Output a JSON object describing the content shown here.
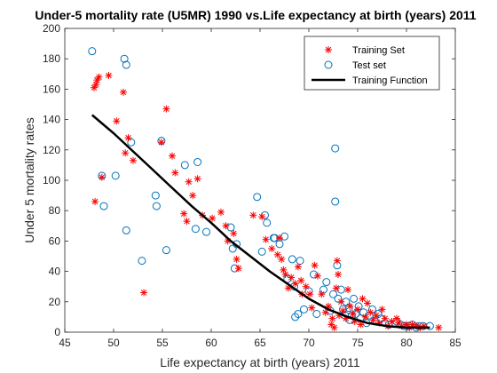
{
  "chart_data": {
    "type": "scatter",
    "title": "Under-5 mortality rate (U5MR) 1990 vs.Life expectancy at birth (years) 2011",
    "xlabel": "Life expectancy at birth (years) 2011",
    "ylabel": "Under 5 mortality rates",
    "xlim": [
      45,
      85
    ],
    "ylim": [
      0,
      200
    ],
    "xticks": [
      45,
      50,
      55,
      60,
      65,
      70,
      75,
      80,
      85
    ],
    "yticks": [
      0,
      20,
      40,
      60,
      80,
      100,
      120,
      140,
      160,
      180,
      200
    ],
    "legend_position": "top-right",
    "colors": {
      "training": "#ff0000",
      "test": "#0072bd",
      "function": "#000000"
    },
    "series": [
      {
        "name": "Training Set",
        "marker": "asterisk",
        "points": [
          [
            48.0,
            161
          ],
          [
            48.2,
            163
          ],
          [
            48.3,
            166
          ],
          [
            48.5,
            168
          ],
          [
            49.5,
            169
          ],
          [
            48.1,
            86
          ],
          [
            48.8,
            102
          ],
          [
            50.3,
            139
          ],
          [
            51.0,
            158
          ],
          [
            51.2,
            118
          ],
          [
            51.5,
            128
          ],
          [
            52.0,
            113
          ],
          [
            53.1,
            26
          ],
          [
            54.9,
            125
          ],
          [
            55.4,
            147
          ],
          [
            56.0,
            116
          ],
          [
            56.3,
            105
          ],
          [
            57.2,
            78
          ],
          [
            57.5,
            73
          ],
          [
            57.7,
            99
          ],
          [
            58.1,
            90
          ],
          [
            58.6,
            101
          ],
          [
            59.1,
            77
          ],
          [
            60.1,
            75
          ],
          [
            61.0,
            79
          ],
          [
            61.5,
            70
          ],
          [
            61.7,
            60
          ],
          [
            62.3,
            65
          ],
          [
            62.6,
            48
          ],
          [
            62.8,
            42
          ],
          [
            64.3,
            77
          ],
          [
            65.2,
            76
          ],
          [
            65.6,
            61
          ],
          [
            66.2,
            55
          ],
          [
            66.8,
            51
          ],
          [
            67.0,
            62
          ],
          [
            67.2,
            48
          ],
          [
            67.4,
            41
          ],
          [
            67.6,
            38
          ],
          [
            67.9,
            29
          ],
          [
            68.2,
            36
          ],
          [
            68.6,
            32
          ],
          [
            68.9,
            43
          ],
          [
            69.2,
            34
          ],
          [
            69.3,
            25
          ],
          [
            69.7,
            30
          ],
          [
            70.1,
            25
          ],
          [
            70.3,
            16
          ],
          [
            70.6,
            44
          ],
          [
            70.9,
            37
          ],
          [
            71.3,
            25
          ],
          [
            71.7,
            13
          ],
          [
            72.0,
            17
          ],
          [
            72.3,
            5
          ],
          [
            72.4,
            9
          ],
          [
            72.6,
            3
          ],
          [
            72.8,
            29
          ],
          [
            72.9,
            47
          ],
          [
            73.0,
            38
          ],
          [
            73.1,
            11
          ],
          [
            73.3,
            20
          ],
          [
            73.5,
            14
          ],
          [
            73.8,
            9
          ],
          [
            74.0,
            28
          ],
          [
            74.2,
            17
          ],
          [
            74.5,
            12
          ],
          [
            74.7,
            7
          ],
          [
            75.0,
            15
          ],
          [
            75.3,
            5
          ],
          [
            75.5,
            22
          ],
          [
            75.8,
            10
          ],
          [
            76.0,
            19
          ],
          [
            76.3,
            13
          ],
          [
            76.6,
            8
          ],
          [
            76.9,
            11
          ],
          [
            77.2,
            6
          ],
          [
            77.5,
            15
          ],
          [
            77.8,
            9
          ],
          [
            78.1,
            4
          ],
          [
            78.5,
            7
          ],
          [
            79.0,
            9
          ],
          [
            79.2,
            6
          ],
          [
            79.5,
            4
          ],
          [
            80.0,
            5
          ],
          [
            80.3,
            3
          ],
          [
            80.6,
            5
          ],
          [
            81.0,
            4
          ],
          [
            81.4,
            3
          ],
          [
            81.8,
            4
          ],
          [
            83.3,
            3
          ]
        ]
      },
      {
        "name": "Test set",
        "marker": "circle",
        "points": [
          [
            47.8,
            185
          ],
          [
            48.8,
            103
          ],
          [
            49.0,
            83
          ],
          [
            50.2,
            103
          ],
          [
            51.1,
            180
          ],
          [
            51.3,
            176
          ],
          [
            51.3,
            67
          ],
          [
            51.8,
            125
          ],
          [
            52.9,
            47
          ],
          [
            54.3,
            90
          ],
          [
            54.4,
            83
          ],
          [
            54.9,
            126
          ],
          [
            55.4,
            54
          ],
          [
            57.3,
            110
          ],
          [
            58.6,
            112
          ],
          [
            58.4,
            68
          ],
          [
            59.5,
            66
          ],
          [
            62.0,
            69
          ],
          [
            62.2,
            55
          ],
          [
            62.4,
            42
          ],
          [
            62.6,
            58
          ],
          [
            64.7,
            89
          ],
          [
            65.2,
            53
          ],
          [
            65.5,
            77
          ],
          [
            65.7,
            72
          ],
          [
            66.4,
            62
          ],
          [
            66.5,
            62
          ],
          [
            67.0,
            58
          ],
          [
            67.5,
            63
          ],
          [
            67.8,
            35
          ],
          [
            68.3,
            48
          ],
          [
            68.5,
            30
          ],
          [
            68.6,
            10
          ],
          [
            68.9,
            12
          ],
          [
            69.1,
            47
          ],
          [
            69.5,
            15
          ],
          [
            70.0,
            27
          ],
          [
            70.5,
            38
          ],
          [
            70.8,
            12
          ],
          [
            71.5,
            28
          ],
          [
            71.8,
            33
          ],
          [
            72.2,
            14
          ],
          [
            72.5,
            25
          ],
          [
            72.7,
            121
          ],
          [
            72.7,
            86
          ],
          [
            72.9,
            44
          ],
          [
            73.0,
            22
          ],
          [
            73.3,
            28
          ],
          [
            73.5,
            15
          ],
          [
            73.7,
            11
          ],
          [
            73.8,
            20
          ],
          [
            74.1,
            16
          ],
          [
            74.2,
            8
          ],
          [
            74.4,
            11
          ],
          [
            74.6,
            22
          ],
          [
            74.8,
            12
          ],
          [
            75.1,
            17
          ],
          [
            75.3,
            9
          ],
          [
            75.6,
            13
          ],
          [
            75.9,
            6
          ],
          [
            76.2,
            11
          ],
          [
            76.5,
            15
          ],
          [
            76.8,
            7
          ],
          [
            77.1,
            12
          ],
          [
            77.4,
            9
          ],
          [
            77.8,
            6
          ],
          [
            78.2,
            5
          ],
          [
            79.0,
            7
          ],
          [
            79.4,
            5
          ],
          [
            79.8,
            4
          ],
          [
            80.2,
            4
          ],
          [
            80.6,
            5
          ],
          [
            81.0,
            3
          ],
          [
            81.3,
            4
          ],
          [
            81.7,
            4
          ],
          [
            82.4,
            4
          ]
        ]
      },
      {
        "name": "Training Function",
        "marker": "line",
        "points": [
          [
            47.8,
            143
          ],
          [
            50,
            131
          ],
          [
            52,
            119
          ],
          [
            54,
            107
          ],
          [
            56,
            95
          ],
          [
            58,
            83
          ],
          [
            60,
            72
          ],
          [
            62,
            60
          ],
          [
            64,
            50
          ],
          [
            66,
            40
          ],
          [
            68,
            31
          ],
          [
            70,
            22
          ],
          [
            72,
            15
          ],
          [
            74,
            10
          ],
          [
            76,
            6
          ],
          [
            78,
            4
          ],
          [
            80,
            3
          ],
          [
            82.4,
            3
          ]
        ]
      }
    ]
  }
}
